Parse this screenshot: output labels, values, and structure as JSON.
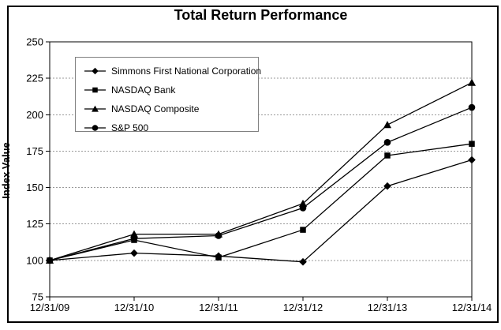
{
  "chart_data": {
    "type": "line",
    "title": "Total Return Performance",
    "ylabel": "Index Value",
    "xlabel": "",
    "categories": [
      "12/31/09",
      "12/31/10",
      "12/31/11",
      "12/31/12",
      "12/31/13",
      "12/31/14"
    ],
    "series": [
      {
        "name": "Simmons First National Corporation",
        "marker": "diamond",
        "values": [
          100,
          105,
          103,
          99,
          151,
          169
        ]
      },
      {
        "name": "NASDAQ Bank",
        "marker": "square",
        "values": [
          100,
          114,
          102,
          121,
          172,
          180
        ]
      },
      {
        "name": "NASDAQ Composite",
        "marker": "triangle",
        "values": [
          100,
          118,
          118,
          139,
          193,
          222
        ]
      },
      {
        "name": "S&P 500",
        "marker": "circle",
        "values": [
          100,
          115,
          117,
          136,
          181,
          205
        ]
      }
    ],
    "ylim": [
      75,
      250
    ],
    "yticks": [
      75,
      100,
      125,
      150,
      175,
      200,
      225,
      250
    ],
    "grid": true,
    "gridline_style": "dashed",
    "legend_position": "upper-left-inside",
    "colors": {
      "series": "#000000",
      "axis": "#000000",
      "grid": "#999999",
      "legend_border": "#808080",
      "frame_border": "#000000",
      "background": "#ffffff"
    }
  }
}
